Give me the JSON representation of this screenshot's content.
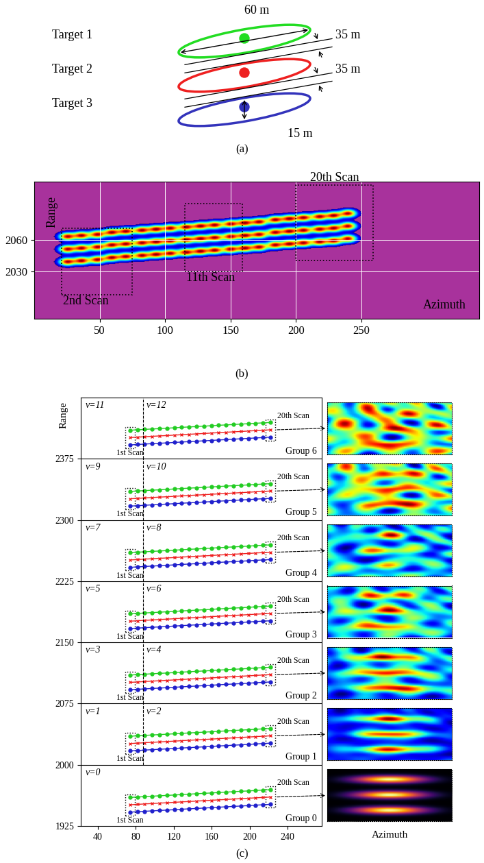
{
  "chart_data": [
    {
      "type": "diagram",
      "caption": "(a)",
      "targets": [
        {
          "name": "Target 1",
          "color": "#22dd22"
        },
        {
          "name": "Target 2",
          "color": "#ee2020"
        },
        {
          "name": "Target 3",
          "color": "#3333bb"
        }
      ],
      "dimensions": {
        "length": "60 m",
        "spacing": [
          "35 m",
          "35 m"
        ],
        "width": "15 m"
      }
    },
    {
      "type": "surface",
      "caption": "(b)",
      "xlabel": "Azimuth",
      "ylabel": "Range",
      "xlim": [
        0,
        340
      ],
      "xticks": [
        50,
        100,
        150,
        200,
        250
      ],
      "ylim": [
        1985,
        2115
      ],
      "yticks": [
        2030,
        2060
      ],
      "grid": true,
      "scan_azimuth": [
        25,
        36,
        48,
        59,
        70,
        82,
        93,
        104,
        116,
        127,
        138,
        150,
        161,
        172,
        184,
        195,
        206,
        218,
        229,
        240
      ],
      "track_ranges": [
        [
          2063,
          2064,
          2065,
          2067,
          2068,
          2069,
          2070,
          2071,
          2072,
          2073,
          2074,
          2075,
          2076,
          2077,
          2079,
          2080,
          2081,
          2082,
          2083,
          2085
        ],
        [
          2051,
          2052,
          2053,
          2055,
          2056,
          2057,
          2058,
          2059,
          2060,
          2061,
          2062,
          2063,
          2064,
          2065,
          2067,
          2068,
          2069,
          2070,
          2071,
          2073
        ],
        [
          2039,
          2040,
          2041,
          2043,
          2044,
          2045,
          2046,
          2047,
          2048,
          2049,
          2050,
          2051,
          2052,
          2053,
          2055,
          2056,
          2057,
          2058,
          2059,
          2061
        ]
      ],
      "scan_boxes": [
        {
          "label": "2nd Scan",
          "azimuth": [
            21,
            75
          ],
          "range": [
            2008,
            2071
          ]
        },
        {
          "label": "11th Scan",
          "azimuth": [
            115,
            159
          ],
          "range": [
            2030,
            2094
          ]
        },
        {
          "label": "20th Scan",
          "azimuth": [
            200,
            259
          ],
          "range": [
            2040,
            2112
          ]
        }
      ]
    },
    {
      "type": "line",
      "caption": "(c)",
      "ylabel": "Range",
      "thumbnail_label": "Azimuth",
      "xlim": [
        22,
        276
      ],
      "xticks": [
        40,
        80,
        120,
        160,
        200,
        240
      ],
      "ylim": [
        1925,
        2450
      ],
      "yticks": [
        1925,
        2000,
        2075,
        2150,
        2225,
        2300,
        2375
      ],
      "divider_x": 88,
      "first_scan_label": "1st Scan",
      "last_scan_label": "20th Scan",
      "x": [
        74,
        82,
        89,
        97,
        105,
        113,
        121,
        128,
        136,
        144,
        152,
        160,
        167,
        175,
        183,
        191,
        199,
        206,
        214,
        222
      ],
      "groups": [
        {
          "name": "Group 0",
          "v_labels": [
            "v=0"
          ],
          "series": [
            {
              "color": "#22cc22",
              "marker": "circle",
              "values": [
                1960,
                1960.5,
                1961,
                1961.5,
                1962,
                1962.5,
                1963,
                1963.5,
                1964,
                1964.5,
                1965,
                1965.5,
                1966,
                1966.5,
                1967,
                1967.5,
                1968,
                1968.5,
                1969,
                1969.5
              ]
            },
            {
              "color": "#ee2020",
              "marker": "x",
              "values": [
                1951,
                1951.5,
                1952,
                1952.5,
                1953,
                1953.5,
                1954,
                1954.5,
                1955,
                1955.5,
                1956,
                1956.5,
                1957,
                1957.5,
                1958,
                1958.5,
                1959,
                1959.5,
                1960,
                1960.5
              ]
            },
            {
              "color": "#2020cc",
              "marker": "circle",
              "values": [
                1942,
                1942.5,
                1943,
                1943.5,
                1944,
                1944.5,
                1945,
                1945.5,
                1946,
                1946.5,
                1947,
                1947.5,
                1948,
                1948.5,
                1949,
                1949.5,
                1950,
                1950.5,
                1951,
                1951.5
              ]
            }
          ]
        },
        {
          "name": "Group 1",
          "v_labels": [
            "v=1",
            "v=2"
          ],
          "series": [
            {
              "color": "#22cc22",
              "marker": "circle",
              "values": [
                2035,
                2035.5,
                2036,
                2036.5,
                2037,
                2037.5,
                2038,
                2038.5,
                2039,
                2039.5,
                2040,
                2040.5,
                2041,
                2041.5,
                2042,
                2042.5,
                2043,
                2043.5,
                2044,
                2044.5
              ]
            },
            {
              "color": "#ee2020",
              "marker": "x",
              "values": [
                2026,
                2026.5,
                2027,
                2027.5,
                2028,
                2028.5,
                2029,
                2029.5,
                2030,
                2030.5,
                2031,
                2031.5,
                2032,
                2032.5,
                2033,
                2033.5,
                2034,
                2034.5,
                2035,
                2035.5
              ]
            },
            {
              "color": "#2020cc",
              "marker": "circle",
              "values": [
                2017,
                2017.5,
                2018,
                2018.5,
                2019,
                2019.5,
                2020,
                2020.5,
                2021,
                2021.5,
                2022,
                2022.5,
                2023,
                2023.5,
                2024,
                2024.5,
                2025,
                2025.5,
                2026,
                2026.5
              ]
            }
          ]
        },
        {
          "name": "Group 2",
          "v_labels": [
            "v=3",
            "v=4"
          ],
          "series": [
            {
              "color": "#22cc22",
              "marker": "circle",
              "values": [
                2110,
                2110.5,
                2111,
                2111.5,
                2112,
                2112.5,
                2113,
                2113.5,
                2114,
                2114.5,
                2115,
                2115.5,
                2116,
                2116.5,
                2117,
                2117.5,
                2118,
                2118.5,
                2119,
                2119.5
              ]
            },
            {
              "color": "#ee2020",
              "marker": "x",
              "values": [
                2101,
                2101.5,
                2102,
                2102.5,
                2103,
                2103.5,
                2104,
                2104.5,
                2105,
                2105.5,
                2106,
                2106.5,
                2107,
                2107.5,
                2108,
                2108.5,
                2109,
                2109.5,
                2110,
                2110.5
              ]
            },
            {
              "color": "#2020cc",
              "marker": "circle",
              "values": [
                2092,
                2092.5,
                2093,
                2093.5,
                2094,
                2094.5,
                2095,
                2095.5,
                2096,
                2096.5,
                2097,
                2097.5,
                2098,
                2098.5,
                2099,
                2099.5,
                2100,
                2100.5,
                2101,
                2101.5
              ]
            }
          ]
        },
        {
          "name": "Group 3",
          "v_labels": [
            "v=5",
            "v=6"
          ],
          "series": [
            {
              "color": "#22cc22",
              "marker": "circle",
              "values": [
                2185,
                2185.5,
                2186,
                2186.5,
                2187,
                2187.5,
                2188,
                2188.5,
                2189,
                2189.5,
                2190,
                2190.5,
                2191,
                2191.5,
                2192,
                2192.5,
                2193,
                2193.5,
                2194,
                2194.5
              ]
            },
            {
              "color": "#ee2020",
              "marker": "x",
              "values": [
                2176,
                2176.5,
                2177,
                2177.5,
                2178,
                2178.5,
                2179,
                2179.5,
                2180,
                2180.5,
                2181,
                2181.5,
                2182,
                2182.5,
                2183,
                2183.5,
                2184,
                2184.5,
                2185,
                2185.5
              ]
            },
            {
              "color": "#2020cc",
              "marker": "circle",
              "values": [
                2167,
                2167.5,
                2168,
                2168.5,
                2169,
                2169.5,
                2170,
                2170.5,
                2171,
                2171.5,
                2172,
                2172.5,
                2173,
                2173.5,
                2174,
                2174.5,
                2175,
                2175.5,
                2176,
                2176.5
              ]
            }
          ]
        },
        {
          "name": "Group 4",
          "v_labels": [
            "v=7",
            "v=8"
          ],
          "series": [
            {
              "color": "#22cc22",
              "marker": "circle",
              "values": [
                2260,
                2260.5,
                2261,
                2261.5,
                2262,
                2262.5,
                2263,
                2263.5,
                2264,
                2264.5,
                2265,
                2265.5,
                2266,
                2266.5,
                2267,
                2267.5,
                2268,
                2268.5,
                2269,
                2269.5
              ]
            },
            {
              "color": "#ee2020",
              "marker": "x",
              "values": [
                2251,
                2251.5,
                2252,
                2252.5,
                2253,
                2253.5,
                2254,
                2254.5,
                2255,
                2255.5,
                2256,
                2256.5,
                2257,
                2257.5,
                2258,
                2258.5,
                2259,
                2259.5,
                2260,
                2260.5
              ]
            },
            {
              "color": "#2020cc",
              "marker": "circle",
              "values": [
                2242,
                2242.5,
                2243,
                2243.5,
                2244,
                2244.5,
                2245,
                2245.5,
                2246,
                2246.5,
                2247,
                2247.5,
                2248,
                2248.5,
                2249,
                2249.5,
                2250,
                2250.5,
                2251,
                2251.5
              ]
            }
          ]
        },
        {
          "name": "Group 5",
          "v_labels": [
            "v=9",
            "v=10"
          ],
          "series": [
            {
              "color": "#22cc22",
              "marker": "circle",
              "values": [
                2335,
                2335.5,
                2336,
                2336.5,
                2337,
                2337.5,
                2338,
                2338.5,
                2339,
                2339.5,
                2340,
                2340.5,
                2341,
                2341.5,
                2342,
                2342.5,
                2343,
                2343.5,
                2344,
                2344.5
              ]
            },
            {
              "color": "#ee2020",
              "marker": "x",
              "values": [
                2326,
                2326.5,
                2327,
                2327.5,
                2328,
                2328.5,
                2329,
                2329.5,
                2330,
                2330.5,
                2331,
                2331.5,
                2332,
                2332.5,
                2333,
                2333.5,
                2334,
                2334.5,
                2335,
                2335.5
              ]
            },
            {
              "color": "#2020cc",
              "marker": "circle",
              "values": [
                2317,
                2317.5,
                2318,
                2318.5,
                2319,
                2319.5,
                2320,
                2320.5,
                2321,
                2321.5,
                2322,
                2322.5,
                2323,
                2323.5,
                2324,
                2324.5,
                2325,
                2325.5,
                2326,
                2326.5
              ]
            }
          ]
        },
        {
          "name": "Group 6",
          "v_labels": [
            "v=11",
            "v=12"
          ],
          "series": [
            {
              "color": "#22cc22",
              "marker": "circle",
              "values": [
                2410,
                2410.5,
                2411,
                2411.5,
                2412,
                2412.5,
                2413,
                2413.5,
                2414,
                2414.5,
                2415,
                2415.5,
                2416,
                2416.5,
                2417,
                2417.5,
                2418,
                2418.5,
                2419,
                2419.5
              ]
            },
            {
              "color": "#ee2020",
              "marker": "x",
              "values": [
                2401,
                2401.5,
                2402,
                2402.5,
                2403,
                2403.5,
                2404,
                2404.5,
                2405,
                2405.5,
                2406,
                2406.5,
                2407,
                2407.5,
                2408,
                2408.5,
                2409,
                2409.5,
                2410,
                2410.5
              ]
            },
            {
              "color": "#2020cc",
              "marker": "circle",
              "values": [
                2392,
                2392.5,
                2393,
                2393.5,
                2394,
                2394.5,
                2395,
                2395.5,
                2396,
                2396.5,
                2397,
                2397.5,
                2398,
                2398.5,
                2399,
                2399.5,
                2400,
                2400.5,
                2401,
                2401.5
              ]
            }
          ]
        }
      ]
    }
  ]
}
